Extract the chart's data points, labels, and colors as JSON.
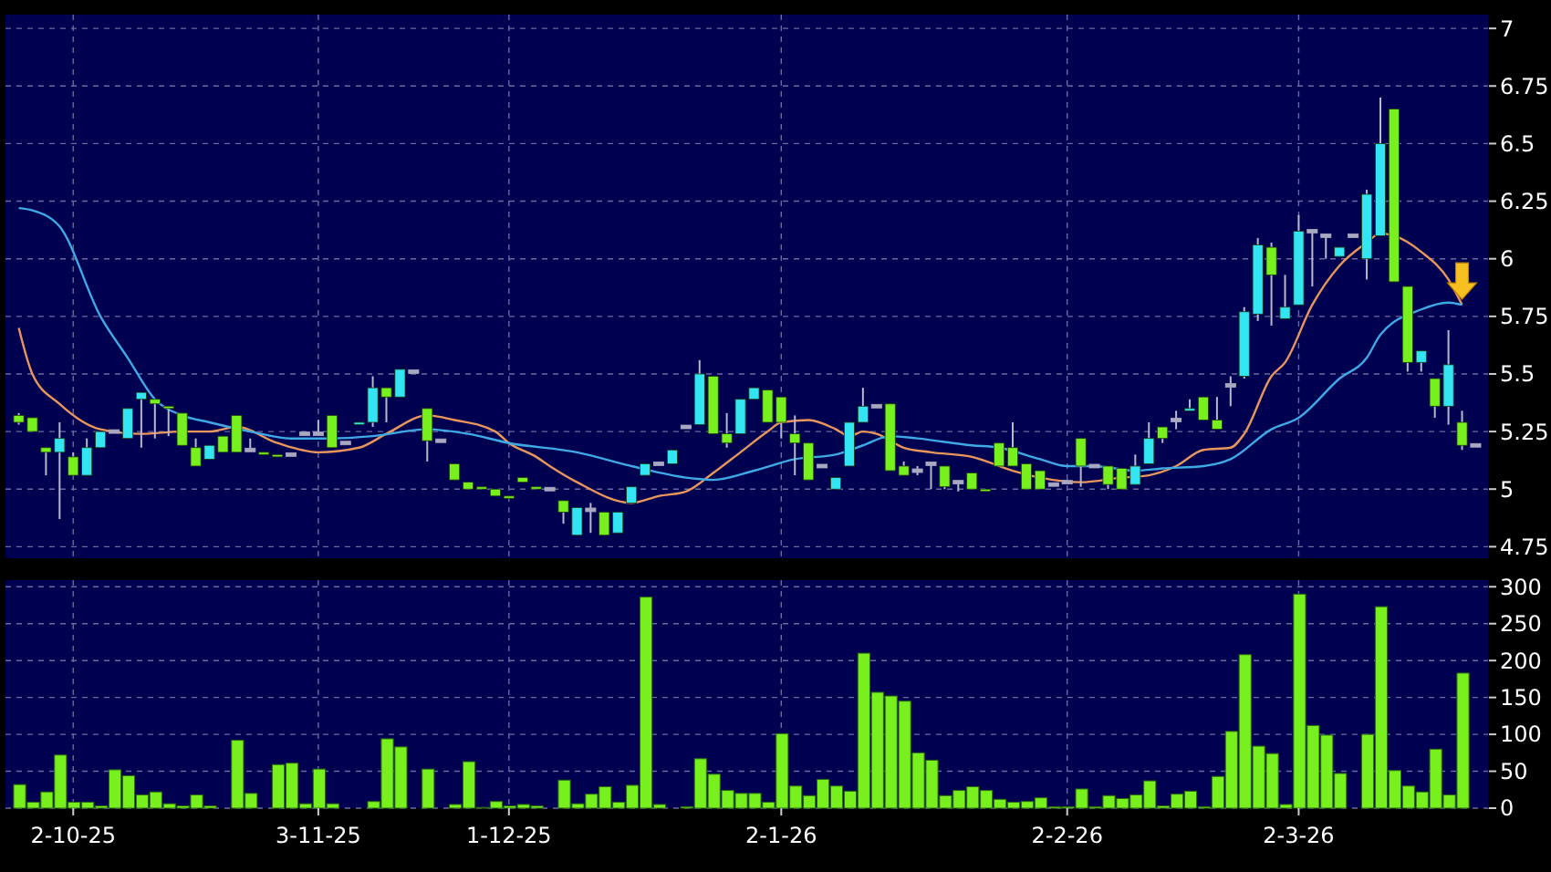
{
  "chart_data": [
    {
      "type": "candlestick",
      "tick_labels": "y",
      "grid": true,
      "categories": [
        null,
        null,
        null,
        null,
        null,
        null,
        null,
        null,
        null,
        null,
        null,
        null,
        null,
        null,
        null,
        null,
        null,
        null,
        null,
        null,
        null,
        null,
        null,
        null,
        null,
        null,
        null,
        null,
        null,
        null,
        null,
        null,
        null,
        null,
        null,
        null,
        null,
        null,
        null,
        null,
        null,
        null,
        null,
        null,
        null,
        null,
        null,
        null,
        null,
        null,
        null,
        null,
        null,
        null,
        null,
        null,
        null,
        null,
        null,
        null,
        null,
        null,
        null,
        null,
        null,
        null,
        null,
        null,
        null,
        null,
        null,
        null,
        null,
        null,
        null,
        null,
        null,
        null,
        null,
        null,
        null,
        null,
        null,
        null,
        null,
        null,
        null,
        null,
        null,
        null,
        null,
        null,
        null,
        null,
        null,
        null,
        null,
        null,
        null,
        null,
        null,
        null,
        null,
        null,
        null,
        null,
        null,
        null
      ],
      "ylim": [
        4.7,
        7.06
      ],
      "yticks": [
        4.75,
        5,
        5.25,
        5.5,
        5.75,
        6,
        6.25,
        6.5,
        6.75,
        7
      ],
      "ohlc": [
        [
          5.32,
          5.33,
          5.28,
          5.29
        ],
        [
          5.31,
          5.31,
          5.25,
          5.25
        ],
        [
          5.18,
          5.18,
          5.06,
          5.16
        ],
        [
          5.16,
          5.29,
          4.87,
          5.22
        ],
        [
          5.14,
          5.16,
          5.06,
          5.06
        ],
        [
          5.06,
          5.22,
          5.06,
          5.18
        ],
        [
          5.18,
          5.25,
          5.18,
          5.25
        ],
        [
          5.25,
          5.25,
          5.25,
          5.25
        ],
        [
          5.22,
          5.35,
          5.22,
          5.35
        ],
        [
          5.39,
          5.42,
          5.18,
          5.42
        ],
        [
          5.39,
          5.39,
          5.22,
          5.37
        ],
        [
          5.36,
          5.36,
          5.23,
          5.35
        ],
        [
          5.33,
          5.33,
          5.19,
          5.19
        ],
        [
          5.18,
          5.22,
          5.1,
          5.1
        ],
        [
          5.13,
          5.19,
          5.13,
          5.19
        ],
        [
          5.23,
          5.23,
          5.16,
          5.16
        ],
        [
          5.32,
          5.32,
          5.16,
          5.16
        ],
        [
          5.17,
          5.22,
          5.17,
          5.17
        ],
        [
          5.16,
          5.16,
          5.15,
          5.15
        ],
        [
          5.15,
          5.15,
          5.14,
          5.14
        ],
        [
          5.15,
          5.15,
          5.15,
          5.15
        ],
        [
          5.24,
          5.24,
          5.24,
          5.24
        ],
        [
          5.24,
          5.3,
          5.24,
          5.24
        ],
        [
          5.32,
          5.32,
          5.18,
          5.18
        ],
        [
          5.2,
          5.2,
          5.2,
          5.2
        ],
        [
          5.28,
          5.29,
          5.28,
          5.29
        ],
        [
          5.29,
          5.49,
          5.27,
          5.44
        ],
        [
          5.44,
          5.44,
          5.29,
          5.4
        ],
        [
          5.4,
          5.52,
          5.4,
          5.52
        ],
        [
          5.51,
          5.51,
          5.51,
          5.51
        ],
        [
          5.35,
          5.35,
          5.12,
          5.21
        ],
        [
          5.21,
          5.21,
          5.21,
          5.21
        ],
        [
          5.11,
          5.11,
          5.04,
          5.04
        ],
        [
          5.03,
          5.03,
          5.0,
          5.0
        ],
        [
          5.01,
          5.01,
          5.0,
          5.0
        ],
        [
          5.0,
          5.0,
          4.97,
          4.97
        ],
        [
          4.97,
          4.97,
          4.96,
          4.96
        ],
        [
          5.05,
          5.05,
          5.03,
          5.03
        ],
        [
          5.01,
          5.01,
          5.0,
          5.0
        ],
        [
          5.0,
          5.0,
          5.0,
          5.0
        ],
        [
          4.95,
          4.95,
          4.85,
          4.9
        ],
        [
          4.8,
          4.92,
          4.8,
          4.92
        ],
        [
          4.91,
          4.94,
          4.81,
          4.91
        ],
        [
          4.9,
          4.9,
          4.8,
          4.8
        ],
        [
          4.81,
          4.9,
          4.81,
          4.9
        ],
        [
          4.94,
          5.01,
          4.94,
          5.01
        ],
        [
          5.06,
          5.11,
          5.06,
          5.11
        ],
        [
          5.11,
          5.11,
          5.11,
          5.11
        ],
        [
          5.11,
          5.17,
          5.11,
          5.17
        ],
        [
          5.27,
          5.27,
          5.27,
          5.27
        ],
        [
          5.28,
          5.56,
          5.28,
          5.5
        ],
        [
          5.49,
          5.49,
          5.24,
          5.24
        ],
        [
          5.24,
          5.33,
          5.18,
          5.2
        ],
        [
          5.24,
          5.39,
          5.24,
          5.39
        ],
        [
          5.39,
          5.44,
          5.39,
          5.44
        ],
        [
          5.43,
          5.43,
          5.29,
          5.29
        ],
        [
          5.4,
          5.4,
          5.22,
          5.29
        ],
        [
          5.24,
          5.32,
          5.06,
          5.2
        ],
        [
          5.2,
          5.2,
          5.04,
          5.04
        ],
        [
          5.1,
          5.1,
          5.1,
          5.1
        ],
        [
          5.0,
          5.05,
          5.0,
          5.05
        ],
        [
          5.1,
          5.29,
          5.1,
          5.29
        ],
        [
          5.29,
          5.44,
          5.29,
          5.36
        ],
        [
          5.36,
          5.36,
          5.36,
          5.36
        ],
        [
          5.37,
          5.37,
          5.08,
          5.08
        ],
        [
          5.1,
          5.12,
          5.06,
          5.06
        ],
        [
          5.08,
          5.1,
          5.06,
          5.08
        ],
        [
          5.11,
          5.11,
          5.0,
          5.11
        ],
        [
          5.1,
          5.1,
          5.0,
          5.01
        ],
        [
          5.03,
          5.03,
          4.99,
          5.03
        ],
        [
          5.07,
          5.07,
          5.0,
          5.0
        ],
        [
          5.0,
          5.0,
          4.99,
          4.99
        ],
        [
          5.2,
          5.2,
          5.1,
          5.1
        ],
        [
          5.18,
          5.29,
          5.1,
          5.1
        ],
        [
          5.11,
          5.11,
          5.0,
          5.0
        ],
        [
          5.08,
          5.08,
          5.0,
          5.0
        ],
        [
          5.02,
          5.02,
          5.02,
          5.02
        ],
        [
          5.03,
          5.03,
          5.03,
          5.03
        ],
        [
          5.22,
          5.22,
          5.01,
          5.1
        ],
        [
          5.1,
          5.1,
          5.1,
          5.1
        ],
        [
          5.1,
          5.1,
          5.0,
          5.02
        ],
        [
          5.09,
          5.09,
          5.0,
          5.0
        ],
        [
          5.02,
          5.15,
          5.02,
          5.1
        ],
        [
          5.11,
          5.29,
          5.11,
          5.22
        ],
        [
          5.27,
          5.27,
          5.2,
          5.22
        ],
        [
          5.3,
          5.34,
          5.26,
          5.3
        ],
        [
          5.34,
          5.39,
          5.34,
          5.35
        ],
        [
          5.4,
          5.4,
          5.3,
          5.3
        ],
        [
          5.3,
          5.4,
          5.26,
          5.26
        ],
        [
          5.45,
          5.49,
          5.36,
          5.45
        ],
        [
          5.49,
          5.79,
          5.48,
          5.77
        ],
        [
          5.76,
          6.09,
          5.73,
          6.06
        ],
        [
          6.05,
          6.07,
          5.71,
          5.93
        ],
        [
          5.74,
          5.93,
          5.74,
          5.79
        ],
        [
          5.8,
          6.19,
          5.8,
          6.12
        ],
        [
          6.12,
          6.12,
          5.88,
          6.12
        ],
        [
          6.1,
          6.1,
          6.0,
          6.1
        ],
        [
          6.01,
          6.05,
          6.01,
          6.05
        ],
        [
          6.1,
          6.1,
          6.1,
          6.1
        ],
        [
          6.0,
          6.3,
          5.91,
          6.28
        ],
        [
          6.1,
          6.7,
          6.1,
          6.5
        ],
        [
          6.65,
          6.65,
          5.9,
          5.9
        ],
        [
          5.88,
          5.88,
          5.51,
          5.55
        ],
        [
          5.55,
          5.6,
          5.51,
          5.6
        ],
        [
          5.48,
          5.48,
          5.31,
          5.36
        ],
        [
          5.36,
          5.69,
          5.28,
          5.54
        ],
        [
          5.29,
          5.34,
          5.17,
          5.19
        ],
        [
          5.19,
          5.19,
          5.19,
          5.19
        ]
      ],
      "series": [
        {
          "type": "line",
          "color": "#e8965c",
          "values": [
            5.7,
            5.5,
            null,
            5.37,
            null,
            null,
            5.26,
            null,
            null,
            5.24,
            null,
            null,
            5.25,
            null,
            5.25,
            null,
            5.27,
            null,
            null,
            5.2,
            null,
            null,
            5.16,
            null,
            null,
            5.18,
            null,
            5.24,
            null,
            null,
            5.32,
            null,
            5.3,
            null,
            null,
            5.25,
            5.2,
            null,
            5.14,
            5.1,
            null,
            5.03,
            null,
            null,
            null,
            4.94,
            null,
            4.97,
            null,
            4.99,
            null,
            5.07,
            null,
            5.16,
            null,
            5.25,
            5.29,
            null,
            5.3,
            null,
            5.26,
            5.23,
            5.25,
            5.24,
            null,
            5.18,
            null,
            5.16,
            null,
            null,
            5.14,
            null,
            null,
            5.08,
            null,
            5.05,
            null,
            null,
            5.03,
            null,
            null,
            5.05,
            null,
            5.06,
            null,
            5.1,
            null,
            5.17,
            null,
            5.18,
            5.24,
            null,
            5.49,
            5.55,
            null,
            5.8,
            null,
            5.97,
            null,
            6.07,
            6.11,
            6.1,
            null,
            6.03,
            null,
            5.91,
            5.8,
            null
          ]
        },
        {
          "type": "line",
          "color": "#3fa9e6",
          "values": [
            6.22,
            6.21,
            null,
            6.14,
            null,
            null,
            5.75,
            null,
            5.57,
            null,
            5.39,
            null,
            5.32,
            null,
            5.29,
            null,
            null,
            5.25,
            null,
            null,
            5.22,
            null,
            null,
            5.22,
            null,
            null,
            5.23,
            null,
            null,
            null,
            5.26,
            null,
            null,
            5.24,
            null,
            null,
            5.2,
            null,
            null,
            null,
            null,
            5.16,
            null,
            null,
            null,
            5.1,
            null,
            null,
            null,
            5.05,
            null,
            5.04,
            null,
            null,
            5.08,
            null,
            null,
            5.13,
            null,
            null,
            5.15,
            null,
            5.19,
            null,
            5.23,
            null,
            5.22,
            null,
            null,
            null,
            5.19,
            null,
            5.18,
            null,
            null,
            5.13,
            null,
            5.1,
            null,
            5.1,
            null,
            null,
            5.08,
            null,
            5.09,
            null,
            null,
            5.1,
            null,
            5.13,
            null,
            null,
            5.26,
            null,
            5.31,
            null,
            null,
            5.48,
            null,
            5.57,
            5.67,
            null,
            null,
            5.78,
            null,
            5.81,
            5.8,
            null
          ]
        }
      ]
    },
    {
      "type": "bar",
      "grid": true,
      "color": "#77f01e",
      "categories": [
        null,
        null,
        null,
        null,
        "2-10-25",
        null,
        null,
        null,
        null,
        null,
        null,
        null,
        null,
        null,
        null,
        null,
        null,
        null,
        null,
        null,
        null,
        null,
        "3-11-25",
        null,
        null,
        null,
        null,
        null,
        null,
        null,
        null,
        null,
        null,
        null,
        null,
        null,
        "1-12-25",
        null,
        null,
        null,
        null,
        null,
        null,
        null,
        null,
        null,
        null,
        null,
        null,
        null,
        null,
        null,
        null,
        null,
        null,
        null,
        "2-1-26",
        null,
        null,
        null,
        null,
        null,
        null,
        null,
        null,
        null,
        null,
        null,
        null,
        null,
        null,
        null,
        null,
        null,
        null,
        null,
        null,
        "2-2-26",
        null,
        null,
        null,
        null,
        null,
        null,
        null,
        null,
        null,
        null,
        null,
        null,
        null,
        null,
        null,
        null,
        "2-3-26",
        null,
        null,
        null,
        null,
        null,
        null,
        null,
        null,
        null,
        null,
        null,
        null,
        null
      ],
      "ylim": [
        0,
        309
      ],
      "yticks": [
        0,
        50,
        100,
        150,
        200,
        250,
        300
      ],
      "values": [
        32,
        8,
        22,
        72,
        8,
        8,
        3,
        52,
        44,
        18,
        22,
        6,
        3,
        18,
        3,
        0,
        92,
        20,
        0,
        59,
        61,
        6,
        53,
        6,
        0,
        0,
        9,
        94,
        83,
        0,
        53,
        0,
        5,
        63,
        1,
        9,
        3,
        5,
        3,
        0,
        38,
        6,
        19,
        29,
        8,
        31,
        286,
        5,
        0,
        2,
        67,
        46,
        24,
        20,
        20,
        8,
        101,
        30,
        17,
        39,
        30,
        23,
        210,
        157,
        152,
        145,
        75,
        65,
        17,
        24,
        29,
        24,
        12,
        8,
        9,
        14,
        2,
        2,
        26,
        2,
        17,
        13,
        18,
        37,
        3,
        19,
        23,
        2,
        43,
        104,
        208,
        84,
        74,
        5,
        290,
        112,
        99,
        47,
        0,
        100,
        273,
        51,
        30,
        22,
        80,
        18,
        183,
        null
      ]
    }
  ]
}
